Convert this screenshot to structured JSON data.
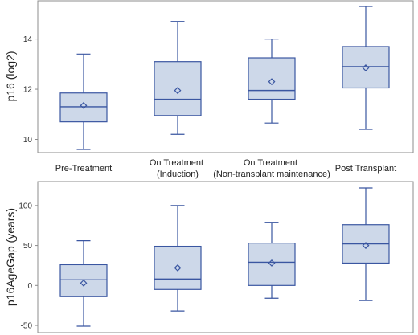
{
  "chart_data": {
    "type": "box",
    "categories": [
      "Pre-Treatment",
      "On Treatment\n(Induction)",
      "On Treatment\n(Non-transplant maintenance)",
      "Post Transplant"
    ],
    "colors": {
      "box_fill": "#cdd8e9",
      "line": "#3a56a1",
      "frame": "#8c8c8c"
    },
    "panels": [
      {
        "ylabel": "p16 (log2)",
        "ylim": [
          9.6,
          15.3
        ],
        "yticks": [
          10,
          12,
          14
        ],
        "boxes": [
          {
            "min": 9.6,
            "q1": 10.7,
            "median": 11.3,
            "q3": 11.85,
            "max": 13.4,
            "mean": 11.35
          },
          {
            "min": 10.2,
            "q1": 10.95,
            "median": 11.6,
            "q3": 13.1,
            "max": 14.7,
            "mean": 11.95
          },
          {
            "min": 10.65,
            "q1": 11.6,
            "median": 11.95,
            "q3": 13.25,
            "max": 14.0,
            "mean": 12.3
          },
          {
            "min": 10.4,
            "q1": 12.05,
            "median": 12.9,
            "q3": 13.7,
            "max": 15.3,
            "mean": 12.85
          }
        ]
      },
      {
        "ylabel": "p16AgeGap (years)",
        "ylim": [
          -55,
          125
        ],
        "yticks": [
          -50,
          0,
          50,
          100
        ],
        "boxes": [
          {
            "min": -51,
            "q1": -14,
            "median": 7,
            "q3": 26,
            "max": 56,
            "mean": 3
          },
          {
            "min": -32,
            "q1": -5,
            "median": 8,
            "q3": 49,
            "max": 100,
            "mean": 22
          },
          {
            "min": -16,
            "q1": 0,
            "median": 29,
            "q3": 53,
            "max": 79,
            "mean": 28
          },
          {
            "min": -19,
            "q1": 28,
            "median": 52,
            "q3": 76,
            "max": 122,
            "mean": 50
          }
        ]
      }
    ]
  }
}
